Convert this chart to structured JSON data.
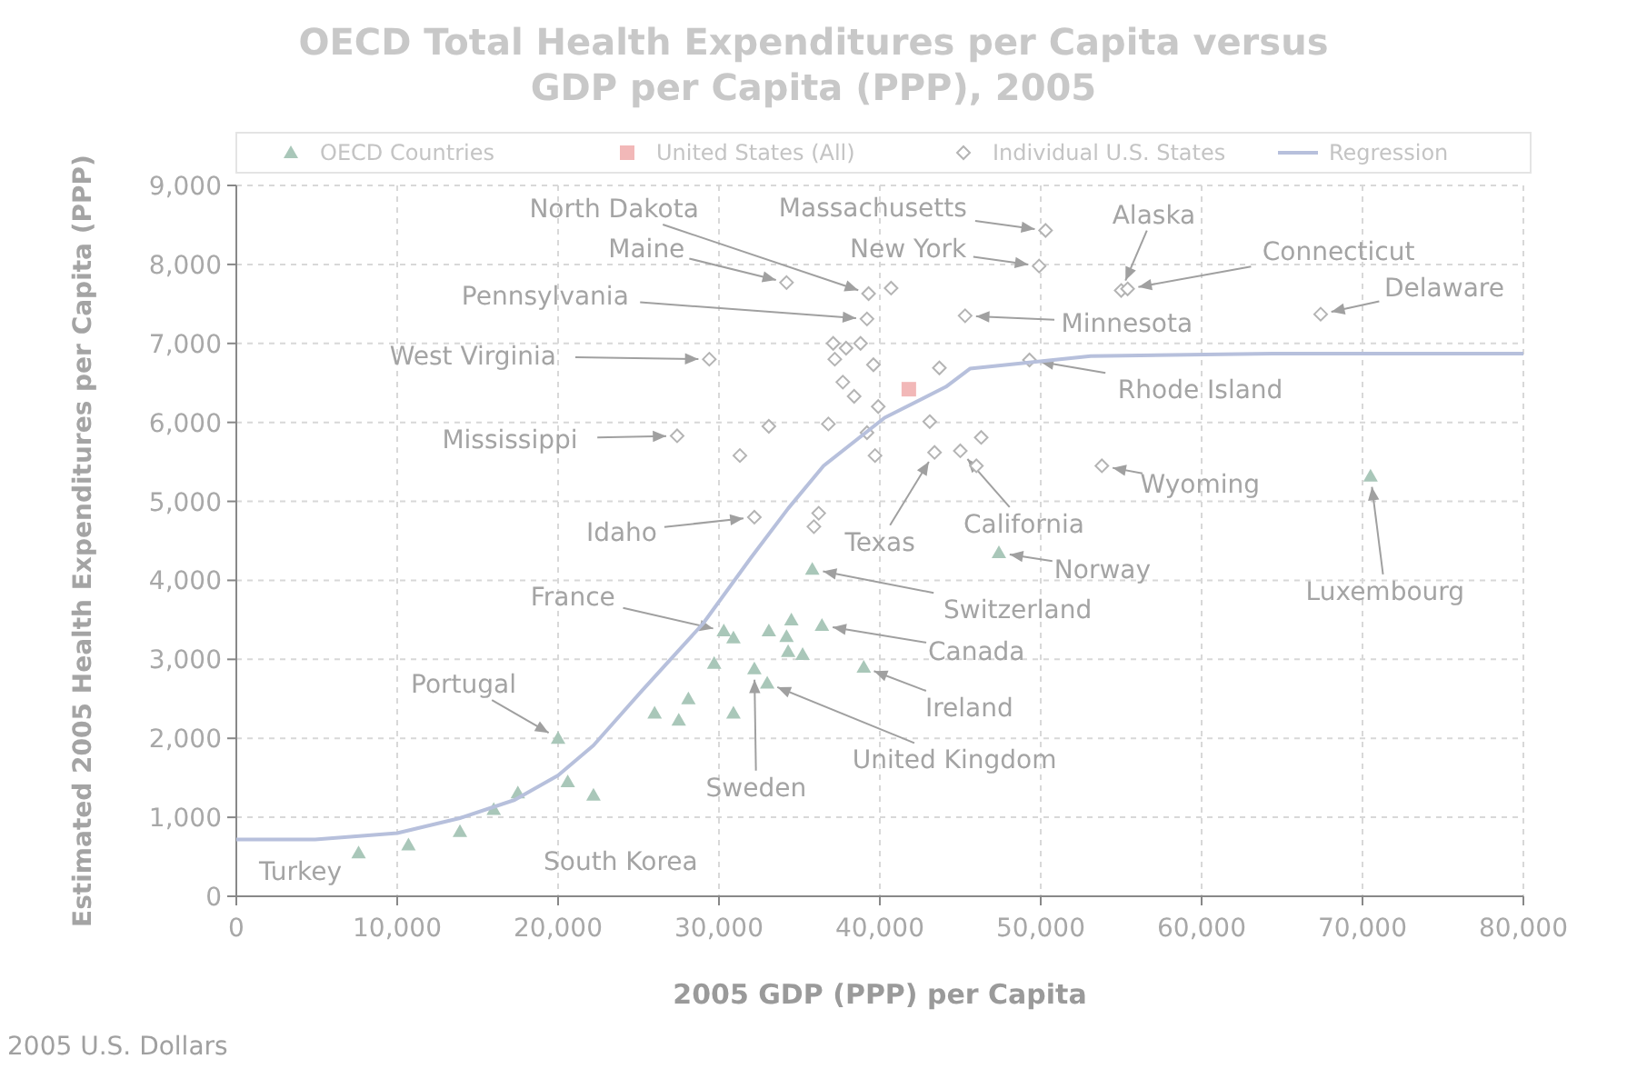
{
  "chart_data": {
    "type": "scatter",
    "title": "OECD Total Health Expenditures per Capita versus GDP per Capita (PPP), 2005",
    "xlabel": "2005 GDP (PPP) per Capita",
    "ylabel": "Estimated 2005 Health Expenditures per Capita (PPP)",
    "xlim": [
      0,
      80000
    ],
    "xticks": [
      {
        "value": 0,
        "label": "0"
      },
      {
        "value": 10000,
        "label": "10,000"
      },
      {
        "value": 20000,
        "label": "20,000"
      },
      {
        "value": 30000,
        "label": "30,000"
      },
      {
        "value": 40000,
        "label": "40,000"
      },
      {
        "value": 50000,
        "label": "50,000"
      },
      {
        "value": 60000,
        "label": "60,000"
      },
      {
        "value": 70000,
        "label": "70,000"
      },
      {
        "value": 80000,
        "label": "80,000"
      }
    ],
    "ylim": [
      0,
      9000
    ],
    "yticks": [
      {
        "value": 0,
        "label": "0"
      },
      {
        "value": 1000,
        "label": "1,000"
      },
      {
        "value": 2000,
        "label": "2,000"
      },
      {
        "value": 3000,
        "label": "3,000"
      },
      {
        "value": 4000,
        "label": "4,000"
      },
      {
        "value": 5000,
        "label": "5,000"
      },
      {
        "value": 6000,
        "label": "6,000"
      },
      {
        "value": 7000,
        "label": "7,000"
      },
      {
        "value": 8000,
        "label": "8,000"
      },
      {
        "value": 9000,
        "label": "9,000"
      }
    ],
    "grid": true,
    "legend": "top",
    "series": [
      {
        "name": "OECD Countries",
        "marker": "triangle",
        "color": "#a9c7b9",
        "x": [
          7600,
          10700,
          13900,
          16000,
          17500,
          20000,
          20600,
          22200,
          26000,
          27500,
          28100,
          29700,
          30300,
          30900,
          30900,
          32200,
          33000,
          33100,
          34200,
          34500,
          34300,
          35200,
          36400,
          35800,
          39000,
          47400,
          70500
        ],
        "values": [
          550,
          650,
          820,
          1100,
          1310,
          2000,
          1450,
          1280,
          2320,
          2230,
          2500,
          2950,
          3360,
          3270,
          2320,
          2880,
          2700,
          3360,
          3290,
          3500,
          3100,
          3060,
          3430,
          4140,
          2900,
          4350,
          5320
        ]
      },
      {
        "name": "United States (All)",
        "marker": "square",
        "color": "#f2b8b8",
        "x": [
          41800
        ],
        "values": [
          6420
        ]
      },
      {
        "name": "Individual U.S. States",
        "marker": "diamond",
        "color": "#b4b4b4",
        "x": [
          34200,
          39300,
          40700,
          49900,
          50300,
          39200,
          37100,
          37900,
          38800,
          37200,
          39600,
          29400,
          37700,
          38400,
          39900,
          43700,
          36800,
          33100,
          39200,
          31300,
          39700,
          27400,
          36200,
          35900,
          32200,
          43400,
          45000,
          46000,
          46300,
          55000,
          55400,
          45300,
          49300,
          43100,
          53800,
          67400
        ],
        "values": [
          7770,
          7630,
          7700,
          7980,
          8430,
          7310,
          7000,
          6940,
          7000,
          6800,
          6730,
          6800,
          6510,
          6330,
          6200,
          6690,
          5980,
          5950,
          5870,
          5580,
          5580,
          5830,
          4850,
          4680,
          4800,
          5620,
          5640,
          5450,
          5810,
          7670,
          7690,
          7350,
          6790,
          6010,
          5450,
          7370
        ]
      },
      {
        "name": "Regression",
        "type": "line",
        "marker": "none",
        "color": "#b7c0dc",
        "x": [
          0,
          4900,
          10000,
          13900,
          17300,
          20000,
          22200,
          25200,
          29000,
          32000,
          34300,
          36500,
          40300,
          44100,
          45600,
          53100,
          64400,
          80000
        ],
        "values": [
          720,
          720,
          800,
          990,
          1220,
          1530,
          1910,
          2600,
          3450,
          4290,
          4910,
          5450,
          6060,
          6450,
          6680,
          6840,
          6870,
          6870
        ]
      }
    ],
    "annotations": [
      {
        "text": "North Dakota",
        "x": 39300,
        "y": 7630
      },
      {
        "text": "Massachusetts",
        "x": 50300,
        "y": 8430
      },
      {
        "text": "Maine",
        "x": 34200,
        "y": 7770
      },
      {
        "text": "New York",
        "x": 49900,
        "y": 7980
      },
      {
        "text": "Alaska",
        "x": 55000,
        "y": 7670
      },
      {
        "text": "Connecticut",
        "x": 55400,
        "y": 7690
      },
      {
        "text": "Pennsylvania",
        "x": 39200,
        "y": 7310
      },
      {
        "text": "Minnesota",
        "x": 45300,
        "y": 7350
      },
      {
        "text": "Delaware",
        "x": 67400,
        "y": 7370
      },
      {
        "text": "West Virginia",
        "x": 29400,
        "y": 6800
      },
      {
        "text": "Rhode Island",
        "x": 49300,
        "y": 6790
      },
      {
        "text": "Mississippi",
        "x": 27400,
        "y": 5830
      },
      {
        "text": "Wyoming",
        "x": 53800,
        "y": 5450
      },
      {
        "text": "Idaho",
        "x": 32200,
        "y": 4800
      },
      {
        "text": "Texas",
        "x": 43400,
        "y": 5620
      },
      {
        "text": "California",
        "x": 45000,
        "y": 5640
      },
      {
        "text": "Norway",
        "x": 47400,
        "y": 4350
      },
      {
        "text": "Luxembourg",
        "x": 70500,
        "y": 5320
      },
      {
        "text": "France",
        "x": 30300,
        "y": 3360
      },
      {
        "text": "Switzerland",
        "x": 35800,
        "y": 4140
      },
      {
        "text": "Canada",
        "x": 36400,
        "y": 3430
      },
      {
        "text": "Portugal",
        "x": 20000,
        "y": 2000
      },
      {
        "text": "Ireland",
        "x": 39000,
        "y": 2900
      },
      {
        "text": "United Kingdom",
        "x": 33000,
        "y": 2700
      },
      {
        "text": "Sweden",
        "x": 32200,
        "y": 2880
      },
      {
        "text": "Turkey",
        "x": 7600,
        "y": 550
      },
      {
        "text": "South Korea",
        "x": 22200,
        "y": 1280
      },
      "2005 U.S. Dollars"
    ]
  }
}
